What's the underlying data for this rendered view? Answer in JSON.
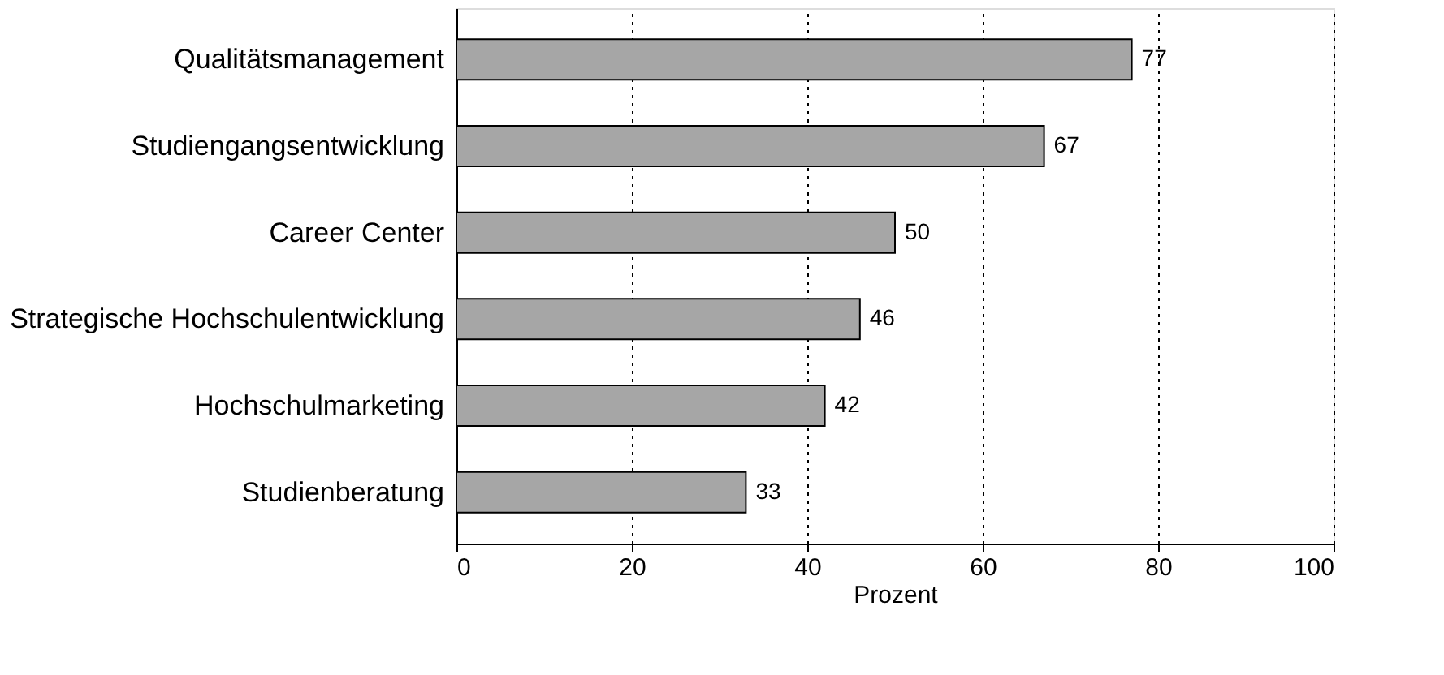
{
  "chart_data": {
    "type": "bar",
    "orientation": "horizontal",
    "categories": [
      "Qualitätsmanagement",
      "Studiengangsentwicklung",
      "Career Center",
      "Strategische Hochschulentwicklung",
      "Hochschulmarketing",
      "Studienberatung"
    ],
    "values": [
      77,
      67,
      50,
      46,
      42,
      33
    ],
    "color": "#a6a6a6",
    "xlabel": "Prozent",
    "xlim": [
      0,
      100
    ],
    "xticks": [
      0,
      20,
      40,
      60,
      80,
      100
    ],
    "grid": "x",
    "data_labels": true
  }
}
